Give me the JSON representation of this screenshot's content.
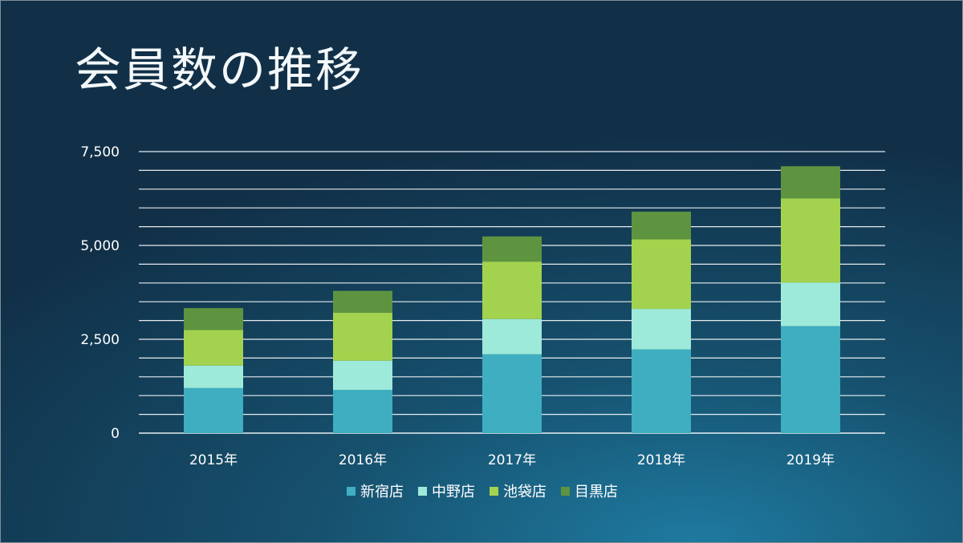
{
  "slide": {
    "title": "会員数の推移"
  },
  "chart_data": {
    "type": "bar",
    "stacked": true,
    "title": "",
    "xlabel": "",
    "ylabel": "",
    "categories": [
      "2015年",
      "2016年",
      "2017年",
      "2018年",
      "2019年"
    ],
    "ylim": [
      0,
      7500
    ],
    "yticks": [
      0,
      2500,
      5000,
      7500
    ],
    "ytick_labels": [
      "0",
      "2,500",
      "5,000",
      "7,500"
    ],
    "minor_gridline_step": 500,
    "grid": true,
    "legend_position": "bottom",
    "series": [
      {
        "name": "新宿店",
        "color": "#3eaec0",
        "values": [
          1200,
          1150,
          2100,
          2230,
          2850
        ]
      },
      {
        "name": "中野店",
        "color": "#9deadb",
        "values": [
          600,
          780,
          940,
          1080,
          1160
        ]
      },
      {
        "name": "池袋店",
        "color": "#a3d24e",
        "values": [
          950,
          1280,
          1530,
          1850,
          2240
        ]
      },
      {
        "name": "目黒店",
        "color": "#5e9440",
        "values": [
          580,
          580,
          670,
          740,
          860
        ]
      }
    ]
  }
}
